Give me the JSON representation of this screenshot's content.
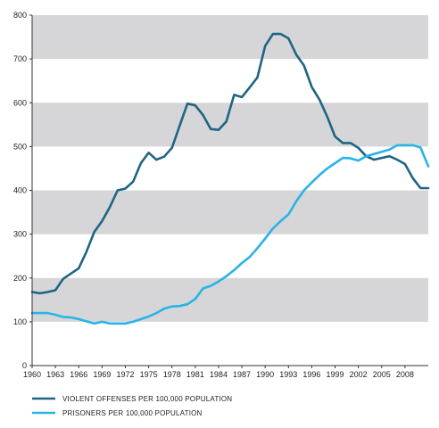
{
  "chart_data": {
    "type": "line",
    "title": "",
    "xlabel": "",
    "ylabel": "",
    "xlim": [
      1960,
      2011
    ],
    "ylim": [
      0,
      800
    ],
    "grid": "alternating horizontal bands",
    "legend_position": "bottom-left",
    "x_ticks": [
      "1960",
      "1963",
      "1966",
      "1969",
      "1972",
      "1975",
      "1978",
      "1981",
      "1984",
      "1987",
      "1990",
      "1993",
      "1996",
      "1999",
      "2002",
      "2005",
      "2008"
    ],
    "y_ticks": [
      "0",
      "100",
      "200",
      "300",
      "400",
      "500",
      "600",
      "700",
      "800"
    ],
    "x": [
      1960,
      1961,
      1962,
      1963,
      1964,
      1965,
      1966,
      1967,
      1968,
      1969,
      1970,
      1971,
      1972,
      1973,
      1974,
      1975,
      1976,
      1977,
      1978,
      1979,
      1980,
      1981,
      1982,
      1983,
      1984,
      1985,
      1986,
      1987,
      1988,
      1989,
      1990,
      1991,
      1992,
      1993,
      1994,
      1995,
      1996,
      1997,
      1998,
      1999,
      2000,
      2001,
      2002,
      2003,
      2004,
      2005,
      2006,
      2007,
      2008,
      2009,
      2010,
      2011
    ],
    "series": [
      {
        "name": "VIOLENT OFFENSES PER 100,000 POPULATION",
        "color": "#1f6583",
        "values": [
          168,
          165,
          168,
          172,
          198,
          210,
          222,
          260,
          305,
          330,
          362,
          400,
          404,
          420,
          462,
          486,
          470,
          477,
          497,
          548,
          598,
          594,
          572,
          540,
          538,
          557,
          618,
          613,
          635,
          658,
          730,
          757,
          757,
          747,
          710,
          685,
          636,
          607,
          568,
          523,
          508,
          508,
          497,
          478,
          470,
          474,
          478,
          470,
          460,
          428,
          405,
          405
        ]
      },
      {
        "name": "PRISONERS PER 100,000 POPULATION",
        "color": "#29b3e6",
        "values": [
          120,
          120,
          120,
          116,
          111,
          110,
          106,
          101,
          96,
          100,
          96,
          96,
          96,
          100,
          106,
          112,
          120,
          130,
          135,
          136,
          140,
          152,
          176,
          182,
          192,
          204,
          218,
          234,
          248,
          268,
          290,
          313,
          330,
          345,
          375,
          400,
          418,
          435,
          450,
          462,
          474,
          473,
          468,
          478,
          483,
          488,
          493,
          503,
          503,
          503,
          498,
          455
        ]
      }
    ]
  }
}
